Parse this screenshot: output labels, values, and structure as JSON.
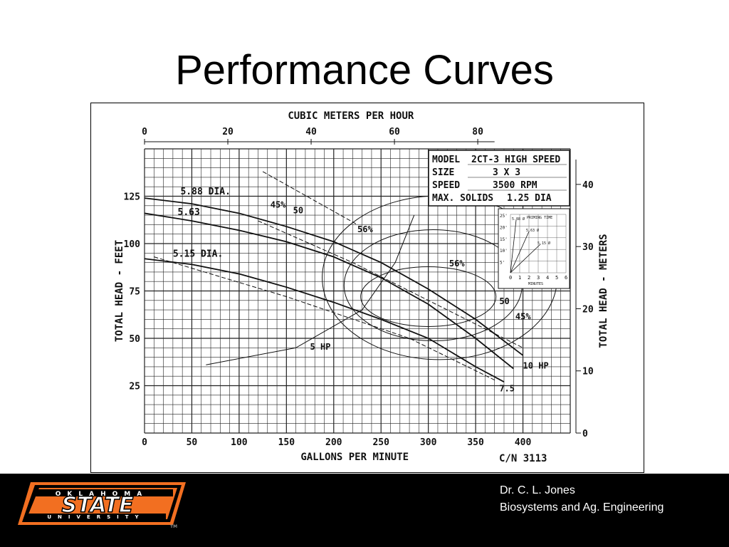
{
  "slide": {
    "title": "Performance Curves"
  },
  "footer": {
    "author": "Dr. C. L. Jones",
    "department": "Biosystems and Ag. Engineering",
    "logo": {
      "top": "OKLAHOMA",
      "main": "STATE",
      "bottom": "UNIVERSITY",
      "tm": "TM",
      "color": "#f26f21"
    }
  },
  "chart_data": {
    "type": "line",
    "title": "",
    "xlabel": "GALLONS PER MINUTE",
    "ylabel": "TOTAL HEAD - FEET",
    "x_top_label": "CUBIC METERS PER HOUR",
    "y_right_label": "TOTAL HEAD - METERS",
    "xlim": [
      0,
      450
    ],
    "ylim": [
      0,
      150
    ],
    "x_ticks": [
      "0",
      "50",
      "100",
      "150",
      "200",
      "250",
      "300",
      "350",
      "400"
    ],
    "y_ticks": [
      "25",
      "50",
      "75",
      "100",
      "125"
    ],
    "x_top_ticks": [
      "0",
      "20",
      "40",
      "60",
      "80"
    ],
    "y_right_ticks": [
      "0",
      "10",
      "20",
      "30",
      "40"
    ],
    "grid": true,
    "catalog_number": "C/N 3113",
    "spec_box": {
      "model_label": "MODEL",
      "model_value": "2CT-3 HIGH SPEED",
      "size_label": "SIZE",
      "size_value": "3 X 3",
      "speed_label": "SPEED",
      "speed_value": "3500 RPM",
      "solids_label": "MAX. SOLIDS",
      "solids_value": "1.25 DIA"
    },
    "priming_inset": {
      "title": "PRIMING TIME",
      "xlabel": "MINUTES",
      "x_ticks": [
        "0",
        "1",
        "2",
        "3",
        "4",
        "5",
        "6"
      ],
      "y_ticks": [
        "25'",
        "20'",
        "15'",
        "10'",
        "5'"
      ],
      "series_labels": [
        "5.88 Ø",
        "5.63 Ø",
        "5.15 Ø"
      ]
    },
    "series": [
      {
        "name": "5.88 DIA.",
        "x": [
          0,
          50,
          100,
          150,
          200,
          250,
          300,
          350,
          400
        ],
        "y": [
          124,
          121,
          116,
          109,
          101,
          90,
          76,
          60,
          41
        ]
      },
      {
        "name": "5.63",
        "x": [
          0,
          50,
          100,
          150,
          200,
          250,
          300,
          350,
          390
        ],
        "y": [
          116,
          112,
          107,
          101,
          93,
          82,
          68,
          50,
          34
        ]
      },
      {
        "name": "5.15 DIA.",
        "x": [
          0,
          50,
          100,
          150,
          200,
          250,
          300,
          350,
          380
        ],
        "y": [
          92,
          89,
          84,
          77,
          69,
          60,
          50,
          35,
          27
        ]
      }
    ],
    "efficiency_labels": [
      "45%",
      "50",
      "56%",
      "56%",
      "50",
      "45%"
    ],
    "power_labels": [
      "5 HP",
      "7.5",
      "10 HP"
    ]
  }
}
